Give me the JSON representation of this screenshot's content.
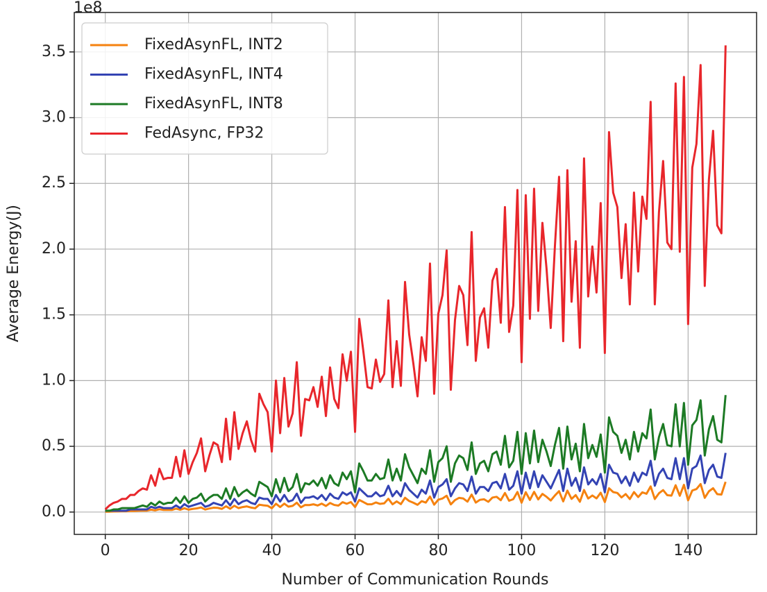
{
  "chart_data": {
    "type": "line",
    "offset_label": "1e8",
    "xlabel": "Number of Communication Rounds",
    "ylabel": "Average Energy(J)",
    "grid": true,
    "legend": "upper left",
    "xlim": [
      -7.45,
      156.45
    ],
    "ylim": [
      -0.17,
      3.8
    ],
    "xticks": [
      0,
      20,
      40,
      60,
      80,
      100,
      120,
      140
    ],
    "yticks": [
      {
        "value": 0,
        "label": "0.0"
      },
      0.5,
      {
        "value": 1,
        "label": "1.0"
      },
      1.5,
      {
        "value": 2,
        "label": "2.0"
      },
      2.5,
      {
        "value": 3,
        "label": "3.0"
      },
      3.5
    ],
    "x": [
      0,
      1,
      2,
      3,
      4,
      5,
      6,
      7,
      8,
      9,
      10,
      11,
      12,
      13,
      14,
      15,
      16,
      17,
      18,
      19,
      20,
      21,
      22,
      23,
      24,
      25,
      26,
      27,
      28,
      29,
      30,
      31,
      32,
      33,
      34,
      35,
      36,
      37,
      38,
      39,
      40,
      41,
      42,
      43,
      44,
      45,
      46,
      47,
      48,
      49,
      50,
      51,
      52,
      53,
      54,
      55,
      56,
      57,
      58,
      59,
      60,
      61,
      62,
      63,
      64,
      65,
      66,
      67,
      68,
      69,
      70,
      71,
      72,
      73,
      74,
      75,
      76,
      77,
      78,
      79,
      80,
      81,
      82,
      83,
      84,
      85,
      86,
      87,
      88,
      89,
      90,
      91,
      92,
      93,
      94,
      95,
      96,
      97,
      98,
      99,
      100,
      101,
      102,
      103,
      104,
      105,
      106,
      107,
      108,
      109,
      110,
      111,
      112,
      113,
      114,
      115,
      116,
      117,
      118,
      119,
      120,
      121,
      122,
      123,
      124,
      125,
      126,
      127,
      128,
      129,
      130,
      131,
      132,
      133,
      134,
      135,
      136,
      137,
      138,
      139,
      140,
      141,
      142,
      143,
      144,
      145,
      146,
      147,
      148,
      149
    ],
    "series": [
      {
        "name": "FixedAsynFL, INT2",
        "color": "#f5820f",
        "values": [
          0.002,
          0.003,
          0.004,
          0.005,
          0.006,
          0.006,
          0.008,
          0.008,
          0.01,
          0.011,
          0.011,
          0.018,
          0.013,
          0.021,
          0.016,
          0.016,
          0.016,
          0.026,
          0.017,
          0.029,
          0.018,
          0.024,
          0.028,
          0.035,
          0.019,
          0.027,
          0.033,
          0.032,
          0.024,
          0.044,
          0.025,
          0.048,
          0.03,
          0.038,
          0.043,
          0.034,
          0.029,
          0.056,
          0.051,
          0.048,
          0.029,
          0.063,
          0.038,
          0.064,
          0.041,
          0.047,
          0.071,
          0.036,
          0.054,
          0.053,
          0.059,
          0.05,
          0.064,
          0.046,
          0.069,
          0.054,
          0.049,
          0.075,
          0.063,
          0.076,
          0.038,
          0.092,
          0.076,
          0.059,
          0.059,
          0.073,
          0.062,
          0.066,
          0.101,
          0.059,
          0.081,
          0.06,
          0.109,
          0.084,
          0.071,
          0.055,
          0.083,
          0.072,
          0.118,
          0.056,
          0.094,
          0.103,
          0.124,
          0.058,
          0.091,
          0.108,
          0.103,
          0.079,
          0.133,
          0.072,
          0.093,
          0.097,
          0.078,
          0.11,
          0.116,
          0.09,
          0.145,
          0.086,
          0.098,
          0.153,
          0.071,
          0.151,
          0.092,
          0.154,
          0.096,
          0.138,
          0.116,
          0.088,
          0.126,
          0.159,
          0.081,
          0.163,
          0.1,
          0.129,
          0.078,
          0.168,
          0.103,
          0.126,
          0.104,
          0.147,
          0.076,
          0.181,
          0.152,
          0.145,
          0.111,
          0.137,
          0.099,
          0.152,
          0.114,
          0.15,
          0.139,
          0.195,
          0.099,
          0.143,
          0.167,
          0.128,
          0.125,
          0.204,
          0.124,
          0.207,
          0.089,
          0.164,
          0.175,
          0.213,
          0.108,
          0.158,
          0.181,
          0.136,
          0.133,
          0.23
        ]
      },
      {
        "name": "FixedAsynFL, INT4",
        "color": "#3343b3",
        "values": [
          0.01,
          0.01,
          0.01,
          0.01,
          0.01,
          0.01,
          0.02,
          0.02,
          0.02,
          0.02,
          0.02,
          0.04,
          0.03,
          0.04,
          0.03,
          0.03,
          0.03,
          0.05,
          0.03,
          0.06,
          0.04,
          0.05,
          0.06,
          0.07,
          0.04,
          0.05,
          0.07,
          0.06,
          0.05,
          0.09,
          0.05,
          0.1,
          0.06,
          0.08,
          0.09,
          0.07,
          0.06,
          0.11,
          0.1,
          0.1,
          0.06,
          0.13,
          0.08,
          0.13,
          0.08,
          0.09,
          0.14,
          0.07,
          0.11,
          0.11,
          0.12,
          0.1,
          0.13,
          0.09,
          0.14,
          0.11,
          0.1,
          0.15,
          0.13,
          0.15,
          0.08,
          0.18,
          0.15,
          0.12,
          0.12,
          0.15,
          0.12,
          0.13,
          0.2,
          0.12,
          0.16,
          0.12,
          0.22,
          0.17,
          0.14,
          0.11,
          0.17,
          0.14,
          0.24,
          0.11,
          0.19,
          0.21,
          0.25,
          0.12,
          0.18,
          0.22,
          0.21,
          0.16,
          0.27,
          0.14,
          0.19,
          0.19,
          0.16,
          0.22,
          0.23,
          0.18,
          0.29,
          0.17,
          0.2,
          0.31,
          0.14,
          0.3,
          0.18,
          0.31,
          0.19,
          0.28,
          0.23,
          0.18,
          0.25,
          0.32,
          0.16,
          0.33,
          0.2,
          0.26,
          0.16,
          0.34,
          0.21,
          0.25,
          0.21,
          0.29,
          0.15,
          0.36,
          0.3,
          0.29,
          0.22,
          0.27,
          0.2,
          0.3,
          0.23,
          0.3,
          0.28,
          0.39,
          0.2,
          0.29,
          0.33,
          0.26,
          0.25,
          0.41,
          0.25,
          0.41,
          0.18,
          0.33,
          0.35,
          0.43,
          0.22,
          0.32,
          0.36,
          0.27,
          0.26,
          0.45
        ]
      },
      {
        "name": "FixedAsynFL, INT8",
        "color": "#1c7a24",
        "values": [
          0.01,
          0.01,
          0.02,
          0.02,
          0.03,
          0.03,
          0.03,
          0.03,
          0.04,
          0.05,
          0.04,
          0.07,
          0.05,
          0.08,
          0.06,
          0.07,
          0.07,
          0.11,
          0.07,
          0.12,
          0.07,
          0.1,
          0.11,
          0.14,
          0.08,
          0.11,
          0.13,
          0.13,
          0.1,
          0.18,
          0.1,
          0.19,
          0.12,
          0.15,
          0.17,
          0.14,
          0.12,
          0.23,
          0.21,
          0.19,
          0.12,
          0.25,
          0.15,
          0.26,
          0.16,
          0.19,
          0.29,
          0.15,
          0.22,
          0.21,
          0.24,
          0.2,
          0.26,
          0.18,
          0.28,
          0.22,
          0.2,
          0.3,
          0.25,
          0.31,
          0.15,
          0.37,
          0.31,
          0.24,
          0.24,
          0.29,
          0.25,
          0.26,
          0.4,
          0.24,
          0.33,
          0.24,
          0.44,
          0.34,
          0.28,
          0.22,
          0.33,
          0.29,
          0.47,
          0.23,
          0.38,
          0.41,
          0.5,
          0.23,
          0.37,
          0.43,
          0.41,
          0.32,
          0.53,
          0.29,
          0.37,
          0.39,
          0.31,
          0.44,
          0.46,
          0.36,
          0.58,
          0.34,
          0.39,
          0.61,
          0.29,
          0.6,
          0.37,
          0.62,
          0.38,
          0.55,
          0.46,
          0.35,
          0.51,
          0.64,
          0.33,
          0.65,
          0.4,
          0.52,
          0.31,
          0.67,
          0.41,
          0.51,
          0.42,
          0.59,
          0.3,
          0.72,
          0.61,
          0.58,
          0.45,
          0.55,
          0.4,
          0.61,
          0.46,
          0.6,
          0.56,
          0.78,
          0.4,
          0.57,
          0.67,
          0.51,
          0.5,
          0.82,
          0.5,
          0.83,
          0.36,
          0.66,
          0.7,
          0.85,
          0.43,
          0.63,
          0.73,
          0.55,
          0.53,
          0.89
        ]
      },
      {
        "name": "FedAsync, FP32",
        "color": "#e8262b",
        "values": [
          0.02,
          0.05,
          0.07,
          0.08,
          0.1,
          0.1,
          0.13,
          0.13,
          0.16,
          0.18,
          0.17,
          0.28,
          0.2,
          0.33,
          0.25,
          0.26,
          0.26,
          0.42,
          0.27,
          0.47,
          0.29,
          0.38,
          0.45,
          0.56,
          0.31,
          0.43,
          0.53,
          0.51,
          0.38,
          0.71,
          0.4,
          0.76,
          0.48,
          0.6,
          0.69,
          0.55,
          0.46,
          0.9,
          0.82,
          0.76,
          0.46,
          1.0,
          0.6,
          1.02,
          0.65,
          0.75,
          1.14,
          0.58,
          0.86,
          0.85,
          0.95,
          0.8,
          1.03,
          0.73,
          1.1,
          0.86,
          0.79,
          1.2,
          1.0,
          1.22,
          0.61,
          1.47,
          1.22,
          0.95,
          0.94,
          1.16,
          0.99,
          1.05,
          1.61,
          0.95,
          1.3,
          0.96,
          1.75,
          1.35,
          1.13,
          0.88,
          1.33,
          1.15,
          1.89,
          0.9,
          1.51,
          1.65,
          1.99,
          0.93,
          1.46,
          1.72,
          1.65,
          1.27,
          2.13,
          1.15,
          1.48,
          1.55,
          1.25,
          1.76,
          1.85,
          1.44,
          2.32,
          1.37,
          1.57,
          2.45,
          1.14,
          2.41,
          1.47,
          2.46,
          1.53,
          2.2,
          1.85,
          1.4,
          2.02,
          2.55,
          1.3,
          2.6,
          1.6,
          2.06,
          1.25,
          2.69,
          1.64,
          2.02,
          1.67,
          2.35,
          1.21,
          2.89,
          2.43,
          2.32,
          1.78,
          2.19,
          1.58,
          2.43,
          1.83,
          2.4,
          2.23,
          3.12,
          1.58,
          2.28,
          2.67,
          2.05,
          2.0,
          3.26,
          1.98,
          3.31,
          1.43,
          2.62,
          2.8,
          3.4,
          1.72,
          2.53,
          2.9,
          2.18,
          2.12,
          3.55
        ]
      }
    ]
  }
}
